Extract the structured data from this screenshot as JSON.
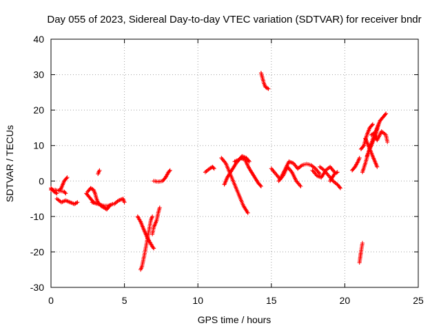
{
  "chart_data": {
    "type": "scatter",
    "title": "Day 055 of 2023, Sidereal Day-to-day VTEC variation (SDTVAR) for receiver bndr",
    "xlabel": "GPS time / hours",
    "ylabel": "SDTVAR / TECUs",
    "xlim": [
      0,
      25
    ],
    "ylim": [
      -30,
      40
    ],
    "xticks": [
      "0",
      "5",
      "10",
      "15",
      "20",
      "25"
    ],
    "yticks": [
      "40",
      "30",
      "20",
      "10",
      "0",
      "-10",
      "-20",
      "-30"
    ],
    "grid": true,
    "marker": "+",
    "color": "#ff0000",
    "segments": [
      {
        "x": [
          0.0,
          0.3,
          0.6,
          0.9,
          1.0
        ],
        "y": [
          -2.5,
          -2.5,
          -2.8,
          -3.0,
          -3.5
        ]
      },
      {
        "x": [
          0.0,
          0.2,
          0.4
        ],
        "y": [
          -2.0,
          -3.0,
          -3.5
        ]
      },
      {
        "x": [
          0.6,
          0.7,
          0.8,
          0.9,
          1.0,
          1.1
        ],
        "y": [
          -2.5,
          -2.0,
          -1.0,
          0.0,
          0.5,
          1.0
        ]
      },
      {
        "x": [
          0.4,
          0.7,
          1.0,
          1.3,
          1.6,
          1.8
        ],
        "y": [
          -5.0,
          -6.0,
          -5.5,
          -6.0,
          -6.5,
          -6.0
        ]
      },
      {
        "x": [
          2.4,
          2.5,
          2.6,
          2.7,
          2.8,
          2.9
        ],
        "y": [
          -3.5,
          -4.0,
          -4.5,
          -5.0,
          -5.5,
          -6.0
        ]
      },
      {
        "x": [
          2.5,
          2.7,
          2.9,
          3.0,
          3.1,
          3.2,
          3.4,
          3.6,
          3.8,
          4.0
        ],
        "y": [
          -3.0,
          -2.0,
          -2.5,
          -3.5,
          -5.0,
          -6.0,
          -7.0,
          -7.5,
          -8.0,
          -7.0
        ]
      },
      {
        "x": [
          2.8,
          3.2,
          3.6,
          3.9,
          4.2
        ],
        "y": [
          -6.0,
          -6.5,
          -7.0,
          -7.0,
          -6.5
        ]
      },
      {
        "x": [
          3.2,
          3.3
        ],
        "y": [
          2.0,
          3.0
        ]
      },
      {
        "x": [
          4.3,
          4.6,
          4.9,
          5.0
        ],
        "y": [
          -6.5,
          -5.5,
          -5.0,
          -6.0
        ]
      },
      {
        "x": [
          5.9,
          6.1,
          6.3,
          6.5,
          6.7,
          6.9,
          7.0
        ],
        "y": [
          -10.0,
          -11.5,
          -13.5,
          -15.5,
          -17.0,
          -18.5,
          -19.0
        ]
      },
      {
        "x": [
          6.1,
          6.2,
          6.4,
          6.6,
          6.8,
          6.9
        ],
        "y": [
          -25.0,
          -24.0,
          -20.0,
          -15.5,
          -11.0,
          -10.0
        ]
      },
      {
        "x": [
          6.9,
          7.0,
          7.1,
          7.2,
          7.3,
          7.4
        ],
        "y": [
          -15.0,
          -13.0,
          -12.0,
          -11.0,
          -9.0,
          -7.5
        ]
      },
      {
        "x": [
          7.0,
          7.3,
          7.6,
          7.8,
          8.0,
          8.1
        ],
        "y": [
          0.0,
          -0.2,
          0.0,
          1.0,
          2.5,
          3.0
        ]
      },
      {
        "x": [
          10.5,
          10.8,
          11.0,
          11.1
        ],
        "y": [
          2.5,
          3.5,
          4.0,
          3.5
        ]
      },
      {
        "x": [
          11.6,
          11.9,
          12.2,
          12.5,
          12.8,
          13.1,
          13.4
        ],
        "y": [
          6.5,
          5.0,
          2.0,
          -1.0,
          -4.0,
          -7.0,
          -9.0
        ]
      },
      {
        "x": [
          11.8,
          12.0,
          12.3,
          12.6,
          12.9,
          13.2,
          13.5,
          13.8,
          14.1,
          14.3
        ],
        "y": [
          -1.0,
          1.0,
          3.0,
          5.0,
          6.5,
          6.0,
          3.5,
          1.5,
          -0.5,
          -1.5
        ]
      },
      {
        "x": [
          12.5,
          12.8,
          13.0,
          13.3,
          13.5
        ],
        "y": [
          5.5,
          6.0,
          7.0,
          6.5,
          5.5
        ]
      },
      {
        "x": [
          14.3,
          14.4,
          14.5,
          14.6,
          14.8
        ],
        "y": [
          30.5,
          29.0,
          27.5,
          26.5,
          26.0
        ]
      },
      {
        "x": [
          15.0,
          15.3,
          15.6,
          15.9,
          16.2,
          16.5,
          16.8
        ],
        "y": [
          3.5,
          2.0,
          0.5,
          3.0,
          5.5,
          5.0,
          3.5
        ]
      },
      {
        "x": [
          15.5,
          15.8,
          16.1,
          16.4,
          16.7,
          17.0
        ],
        "y": [
          0.0,
          1.5,
          4.0,
          2.5,
          0.0,
          -1.5
        ]
      },
      {
        "x": [
          16.8,
          17.1,
          17.4,
          17.7,
          18.0,
          18.3
        ],
        "y": [
          3.5,
          4.5,
          4.8,
          4.5,
          3.5,
          2.0
        ]
      },
      {
        "x": [
          17.8,
          18.1,
          18.4,
          18.7,
          19.0,
          19.3
        ],
        "y": [
          3.0,
          1.5,
          1.0,
          3.0,
          4.0,
          2.5
        ]
      },
      {
        "x": [
          18.3,
          18.6,
          18.9,
          19.2,
          19.5,
          19.7
        ],
        "y": [
          4.0,
          3.0,
          1.5,
          0.0,
          -1.0,
          -2.0
        ]
      },
      {
        "x": [
          19.0,
          19.3,
          19.5
        ],
        "y": [
          0.0,
          2.0,
          2.5
        ]
      },
      {
        "x": [
          20.5,
          20.7,
          20.9,
          21.0
        ],
        "y": [
          3.0,
          4.0,
          5.5,
          6.5
        ]
      },
      {
        "x": [
          21.2,
          21.4,
          21.6,
          21.8,
          22.0,
          22.2,
          22.4,
          22.6,
          22.8
        ],
        "y": [
          2.5,
          5.0,
          8.0,
          10.5,
          13.0,
          15.0,
          17.0,
          18.0,
          19.0
        ]
      },
      {
        "x": [
          21.4,
          21.6,
          21.8,
          22.0,
          22.2
        ],
        "y": [
          12.0,
          10.0,
          8.0,
          6.0,
          4.0
        ]
      },
      {
        "x": [
          21.1,
          21.3,
          21.5,
          21.7,
          21.9
        ],
        "y": [
          9.0,
          10.0,
          13.0,
          15.0,
          16.0
        ]
      },
      {
        "x": [
          21.8,
          22.0,
          22.2,
          22.5,
          22.8,
          22.9
        ],
        "y": [
          13.0,
          13.5,
          11.5,
          14.0,
          13.0,
          11.0
        ]
      },
      {
        "x": [
          21.5,
          21.7,
          21.9,
          22.1,
          22.3
        ],
        "y": [
          7.0,
          9.0,
          11.0,
          13.0,
          16.0
        ]
      },
      {
        "x": [
          21.0,
          21.1,
          21.2
        ],
        "y": [
          -23.0,
          -20.0,
          -17.5
        ]
      }
    ]
  }
}
